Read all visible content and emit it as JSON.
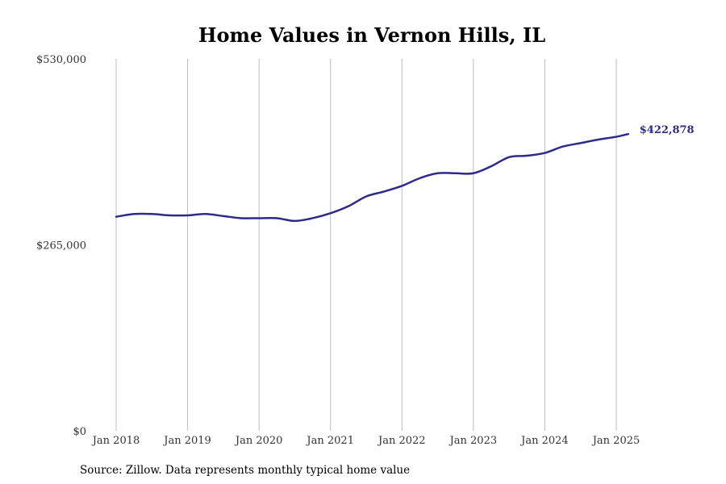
{
  "chart_data": {
    "type": "line",
    "title": "Home Values in Vernon Hills, IL",
    "xlabel": "",
    "ylabel": "",
    "ylim": [
      0,
      530000
    ],
    "y_ticks": [
      0,
      265000,
      530000
    ],
    "y_tick_labels": [
      "$0",
      "$265,000",
      "$530,000"
    ],
    "x_ticks": [
      "2018-01",
      "2019-01",
      "2020-01",
      "2021-01",
      "2022-01",
      "2023-01",
      "2024-01",
      "2025-01"
    ],
    "x_tick_labels": [
      "Jan 2018",
      "Jan 2019",
      "Jan 2020",
      "Jan 2021",
      "Jan 2022",
      "Jan 2023",
      "Jan 2024",
      "Jan 2025"
    ],
    "grid": "vertical",
    "series": [
      {
        "color": "#2e2a8a",
        "points": [
          [
            "2018-01",
            305000
          ],
          [
            "2018-04",
            309000
          ],
          [
            "2018-07",
            309000
          ],
          [
            "2018-10",
            307000
          ],
          [
            "2019-01",
            307000
          ],
          [
            "2019-04",
            309000
          ],
          [
            "2019-07",
            306000
          ],
          [
            "2019-10",
            303000
          ],
          [
            "2020-01",
            303000
          ],
          [
            "2020-04",
            303000
          ],
          [
            "2020-07",
            299000
          ],
          [
            "2020-10",
            303000
          ],
          [
            "2021-01",
            310000
          ],
          [
            "2021-04",
            320000
          ],
          [
            "2021-07",
            334000
          ],
          [
            "2021-10",
            341000
          ],
          [
            "2022-01",
            349000
          ],
          [
            "2022-04",
            360000
          ],
          [
            "2022-07",
            367000
          ],
          [
            "2022-10",
            367000
          ],
          [
            "2023-01",
            367000
          ],
          [
            "2023-04",
            377000
          ],
          [
            "2023-07",
            390000
          ],
          [
            "2023-10",
            392000
          ],
          [
            "2024-01",
            396000
          ],
          [
            "2024-04",
            405000
          ],
          [
            "2024-07",
            410000
          ],
          [
            "2024-10",
            415000
          ],
          [
            "2025-01",
            419000
          ],
          [
            "2025-03",
            422878
          ]
        ]
      }
    ],
    "end_label": "$422,878"
  },
  "footer": {
    "source": "Source: Zillow. Data represents monthly typical home value"
  }
}
